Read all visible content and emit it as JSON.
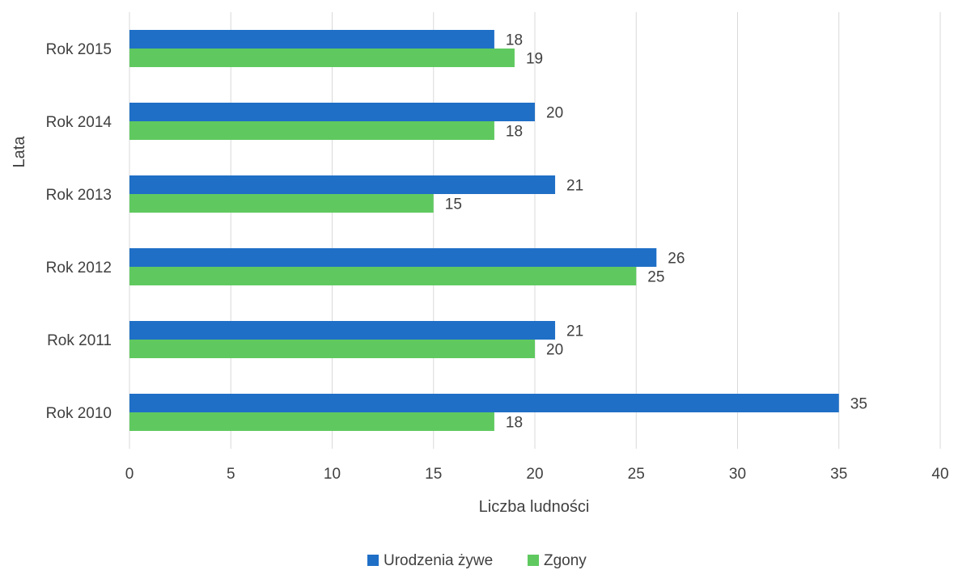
{
  "chart_data": {
    "type": "bar",
    "orientation": "horizontal",
    "categories": [
      "Rok 2010",
      "Rok 2011",
      "Rok 2012",
      "Rok 2013",
      "Rok 2014",
      "Rok 2015"
    ],
    "series": [
      {
        "name": "Urodzenia żywe",
        "color": "#1f6fc6",
        "values": [
          35,
          21,
          26,
          21,
          20,
          18
        ]
      },
      {
        "name": "Zgony",
        "color": "#5fc95f",
        "values": [
          18,
          20,
          25,
          15,
          18,
          19
        ]
      }
    ],
    "xlabel": "Liczba ludności",
    "ylabel": "Lata",
    "xlim": [
      0,
      40
    ],
    "xticks": [
      0,
      5,
      10,
      15,
      20,
      25,
      30,
      35,
      40
    ],
    "grid": true,
    "legend": "bottom"
  }
}
